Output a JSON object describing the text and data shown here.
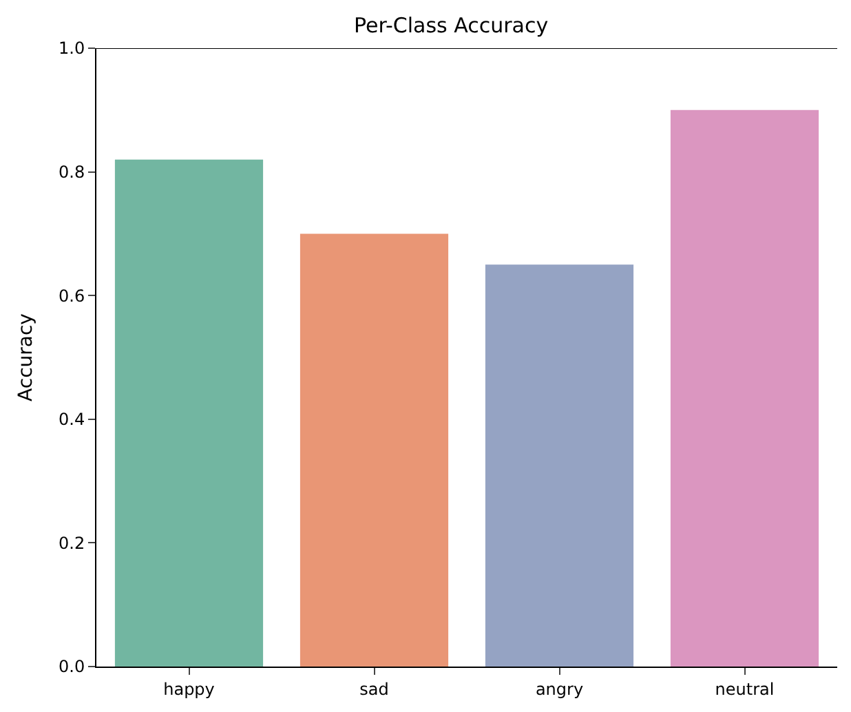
{
  "chart_data": {
    "type": "bar",
    "title": "Per-Class Accuracy",
    "ylabel": "Accuracy",
    "categories": [
      "happy",
      "sad",
      "angry",
      "neutral"
    ],
    "values": [
      0.82,
      0.7,
      0.65,
      0.9
    ],
    "colors": [
      "#72b6a1",
      "#e99675",
      "#95a3c3",
      "#db96c0"
    ],
    "ylim": [
      0,
      1.0
    ],
    "yticks": [
      {
        "value": 0,
        "label": "0.0"
      },
      0.2,
      0.4,
      0.6,
      0.8,
      {
        "value": 1,
        "label": "1.0"
      }
    ]
  }
}
